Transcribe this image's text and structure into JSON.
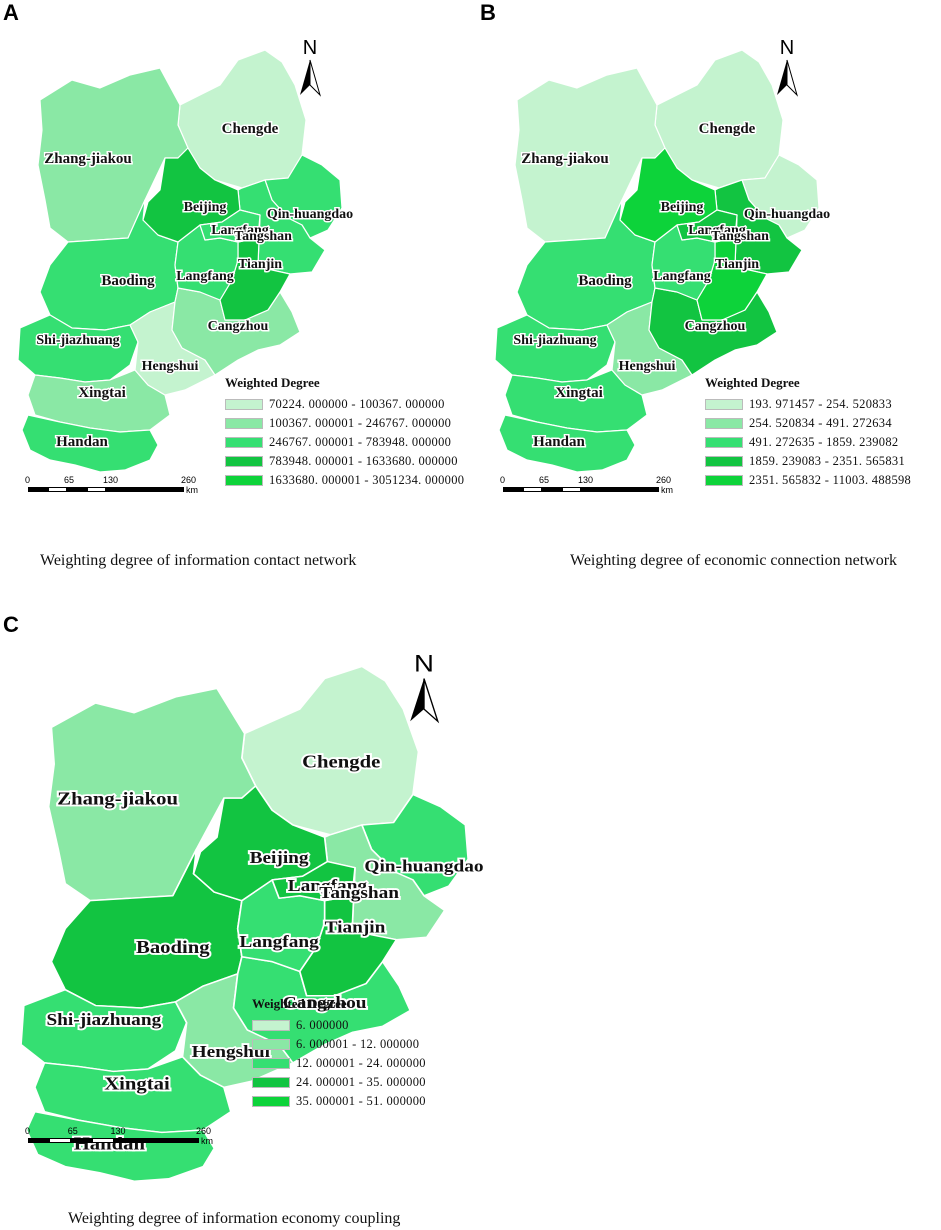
{
  "colors": {
    "class1": "#c4f3cf",
    "class2": "#8ae8a5",
    "class3": "#35df72",
    "class4": "#12c441",
    "class5": "#0dd33a"
  },
  "panels": [
    {
      "letter": "A",
      "caption": "Weighting degree of information contact network",
      "north": "N",
      "legend": {
        "title": "Weighted  Degree",
        "items": [
          {
            "label": "70224. 000000  -  100367. 000000",
            "color": "#c4f3cf"
          },
          {
            "label": "100367. 000001  -  246767. 000000",
            "color": "#8ae8a5"
          },
          {
            "label": "246767. 000001  -  783948. 000000",
            "color": "#35df72"
          },
          {
            "label": "783948. 000001  -  1633680. 000000",
            "color": "#12c441"
          },
          {
            "label": "1633680. 000001  -  3051234. 000000",
            "color": "#0dd33a"
          }
        ]
      },
      "scale": {
        "ticks": [
          "0",
          "65",
          "130",
          "260"
        ],
        "unit": "km"
      },
      "regions": {
        "chengde": 1,
        "zhangjiakou": 2,
        "beijing": 4,
        "langfang_n": 3,
        "qinhuangdao": 3,
        "tangshan": 3,
        "tianjin": 4,
        "langfang_s": 3,
        "baoding": 3,
        "cangzhou": 2,
        "shijiazhuang": 3,
        "hengshui": 1,
        "xingtai": 2,
        "handan": 3
      },
      "cities": {
        "chengde": "Chengde",
        "zhangjiakou": "Zhang-jiakou",
        "beijing": "Beijing",
        "langfang_n": "Langfang",
        "qinhuangdao": "Qin-huangdao",
        "tangshan": "Tangshan",
        "tianjin": "Tianjin",
        "langfang_s": "Langfang",
        "baoding": "Baoding",
        "cangzhou": "Cangzhou",
        "shijiazhuang": "Shi-jiazhuang",
        "hengshui": "Hengshui",
        "xingtai": "Xingtai",
        "handan": "Handan"
      }
    },
    {
      "letter": "B",
      "caption": "Weighting degree of economic connection network",
      "north": "N",
      "legend": {
        "title": "Weighted  Degree",
        "items": [
          {
            "label": "193. 971457  -  254. 520833",
            "color": "#c4f3cf"
          },
          {
            "label": "254. 520834  -  491. 272634",
            "color": "#8ae8a5"
          },
          {
            "label": "491. 272635  -  1859. 239082",
            "color": "#35df72"
          },
          {
            "label": "1859. 239083  -  2351. 565831",
            "color": "#12c441"
          },
          {
            "label": "2351. 565832  -  11003. 488598",
            "color": "#0dd33a"
          }
        ]
      },
      "scale": {
        "ticks": [
          "0",
          "65",
          "130",
          "260"
        ],
        "unit": "km"
      },
      "regions": {
        "chengde": 1,
        "zhangjiakou": 1,
        "beijing": 5,
        "langfang_n": 4,
        "qinhuangdao": 1,
        "tangshan": 4,
        "tianjin": 5,
        "langfang_s": 3,
        "baoding": 3,
        "cangzhou": 4,
        "shijiazhuang": 3,
        "hengshui": 2,
        "xingtai": 3,
        "handan": 3
      },
      "cities": {
        "chengde": "Chengde",
        "zhangjiakou": "Zhang-jiakou",
        "beijing": "Beijing",
        "langfang_n": "Langfang",
        "qinhuangdao": "Qin-huangdao",
        "tangshan": "Tangshan",
        "tianjin": "Tianjin",
        "langfang_s": "Langfang",
        "baoding": "Baoding",
        "cangzhou": "Cangzhou",
        "shijiazhuang": "Shi-jiazhuang",
        "hengshui": "Hengshui",
        "xingtai": "Xingtai",
        "handan": "Handan"
      }
    },
    {
      "letter": "C",
      "caption": "Weighting degree of information economy coupling",
      "north": "N",
      "legend": {
        "title": "Weighted Degree",
        "items": [
          {
            "label": "6. 000000",
            "color": "#c4f3cf"
          },
          {
            "label": "6. 000001  -  12. 000000",
            "color": "#8ae8a5"
          },
          {
            "label": "12. 000001  -  24. 000000",
            "color": "#35df72"
          },
          {
            "label": "24. 000001  -  35. 000000",
            "color": "#12c441"
          },
          {
            "label": "35. 000001  -  51. 000000",
            "color": "#0dd33a"
          }
        ]
      },
      "scale": {
        "ticks": [
          "0",
          "65",
          "130",
          "260"
        ],
        "unit": "km"
      },
      "regions": {
        "chengde": 1,
        "zhangjiakou": 2,
        "beijing": 4,
        "langfang_n": 4,
        "qinhuangdao": 3,
        "tangshan": 2,
        "tianjin": 4,
        "langfang_s": 3,
        "baoding": 4,
        "cangzhou": 3,
        "shijiazhuang": 3,
        "hengshui": 2,
        "xingtai": 3,
        "handan": 3
      },
      "cities": {
        "chengde": "Chengde",
        "zhangjiakou": "Zhang-jiakou",
        "beijing": "Beijing",
        "langfang_n": "Langfang",
        "qinhuangdao": "Qin-huangdao",
        "tangshan": "Tangshan",
        "tianjin": "Tianjin",
        "langfang_s": "Langfang",
        "baoding": "Baoding",
        "cangzhou": "Cangzhou",
        "shijiazhuang": "Shi-jiazhuang",
        "hengshui": "Hengshui",
        "xingtai": "Xingtai",
        "handan": "Handan"
      }
    }
  ]
}
